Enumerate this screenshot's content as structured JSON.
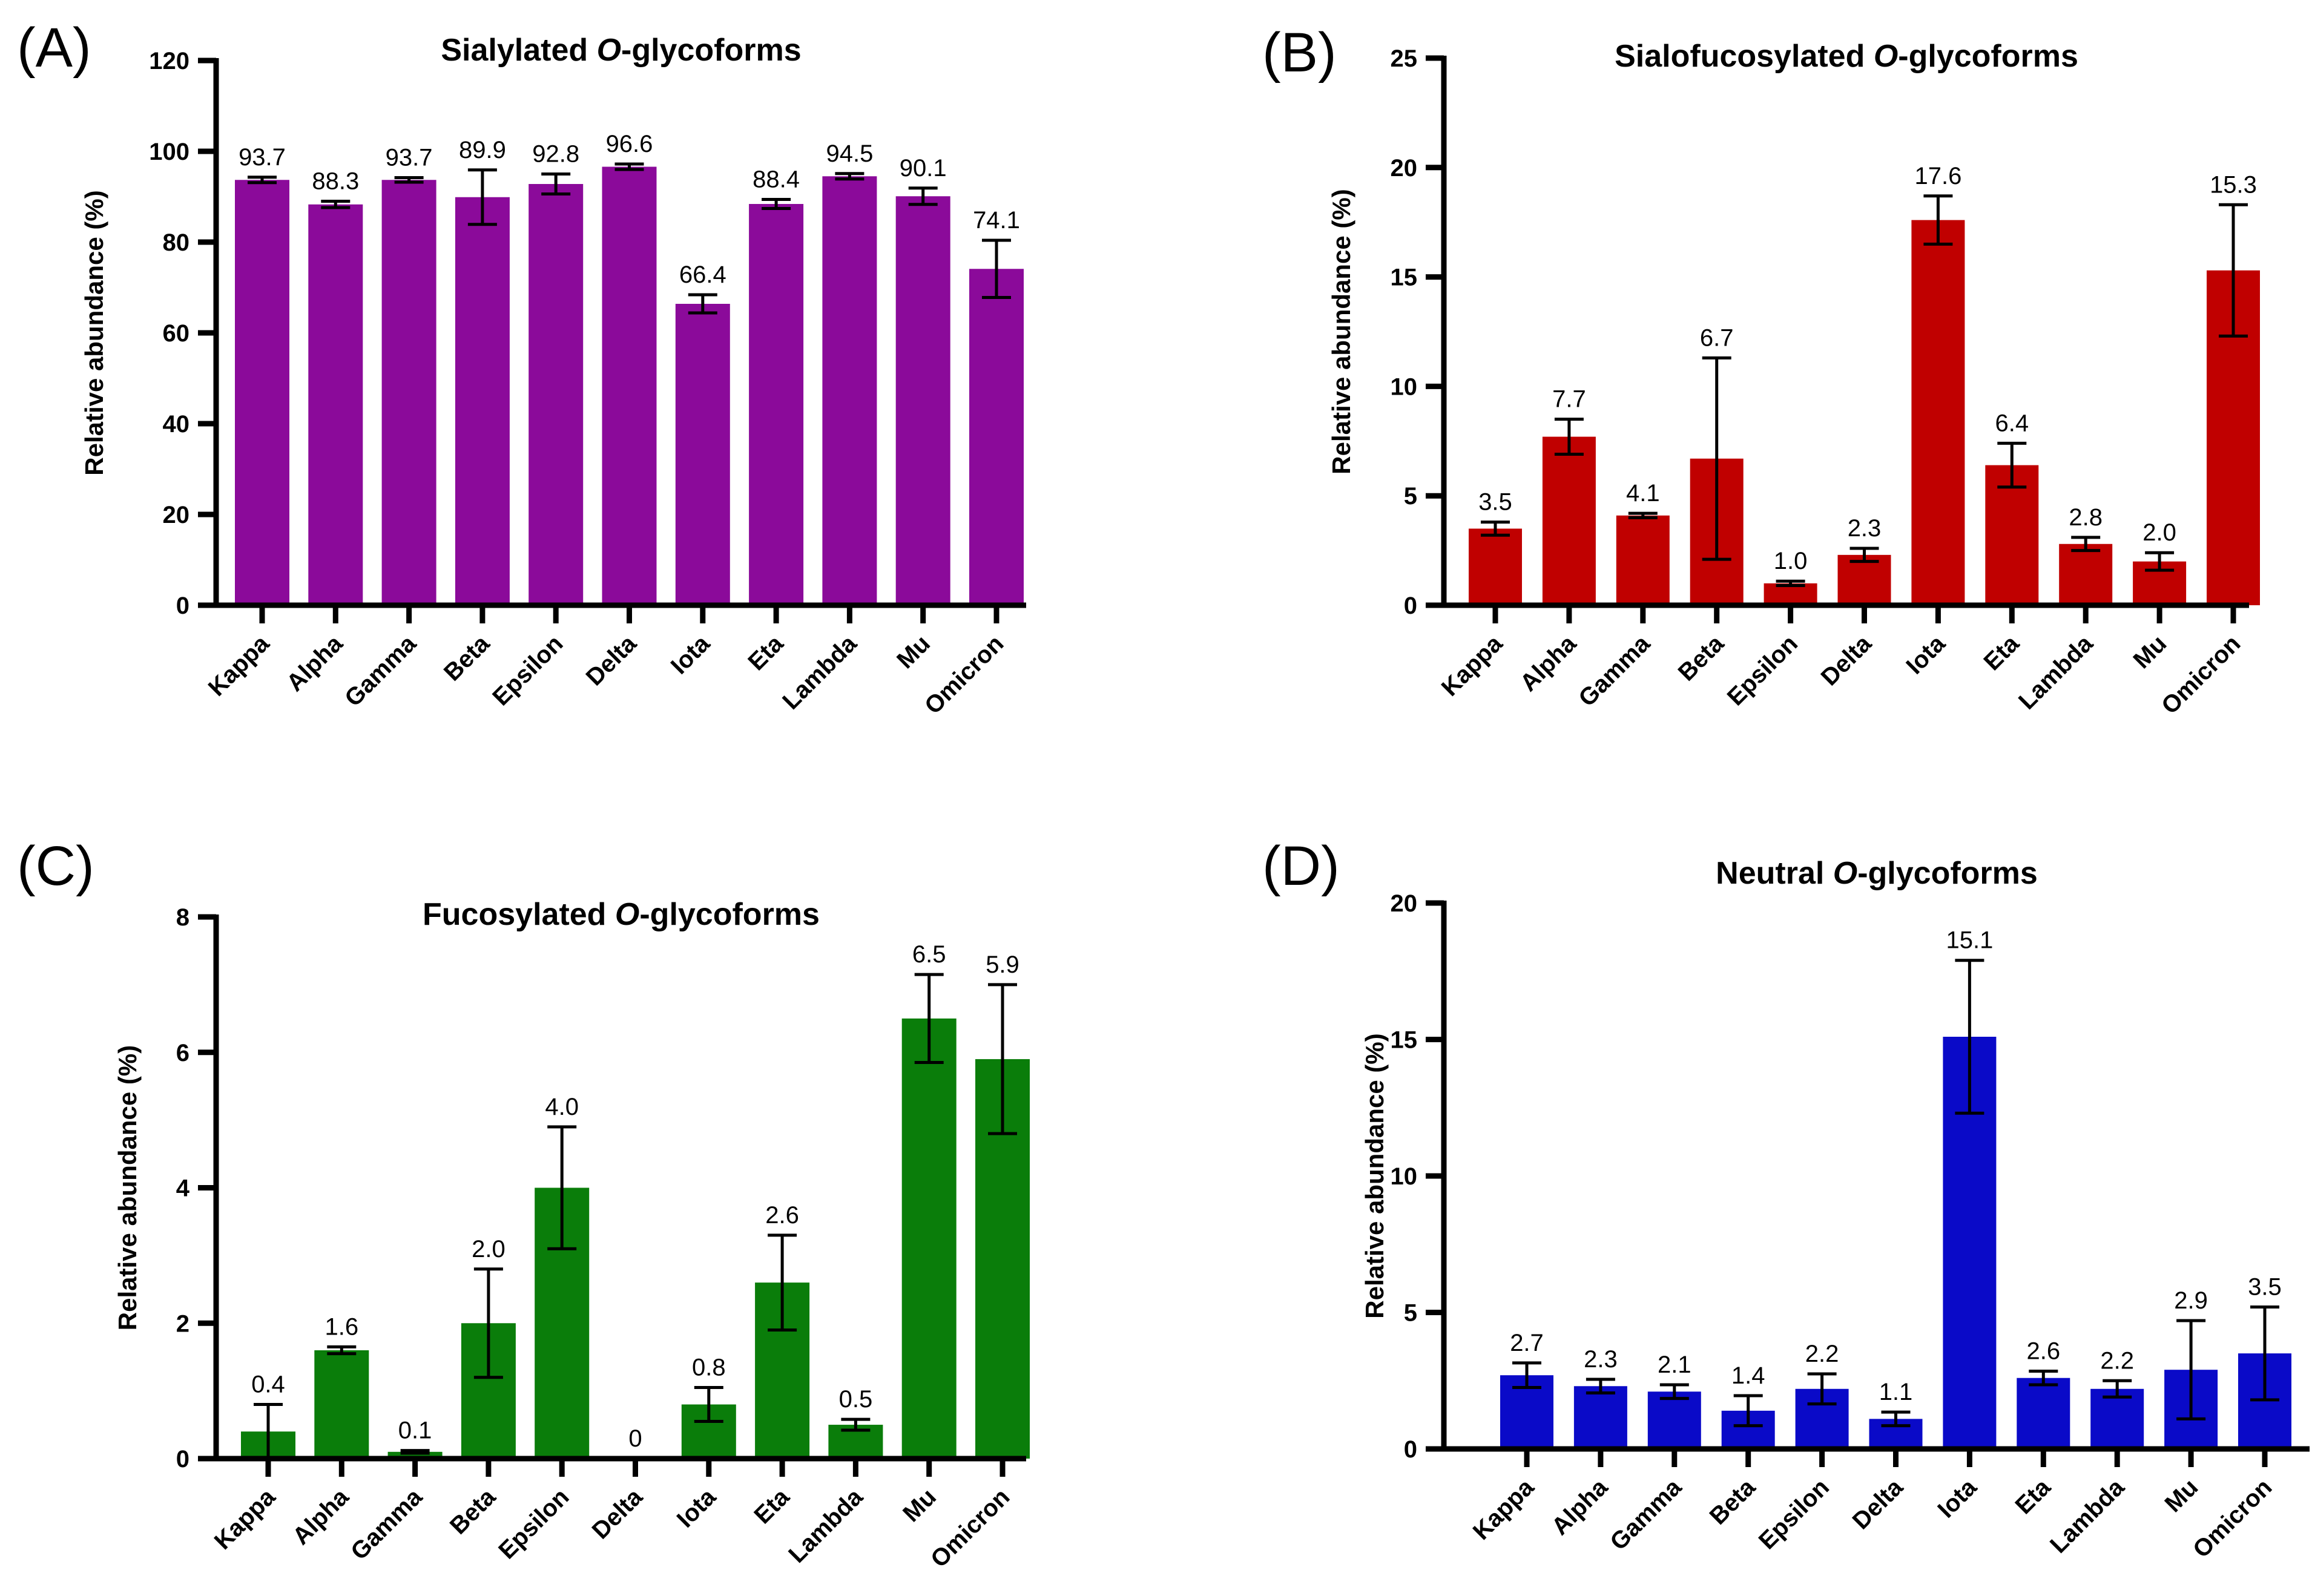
{
  "chart_data": [
    {
      "panel": "(A)",
      "type": "bar",
      "title_pre": "Sialylated ",
      "title_em": "O",
      "title_post": "-glycoforms",
      "ylabel": "Relative abundance  (%)",
      "ylim": [
        0,
        120
      ],
      "yticks": [
        0,
        20,
        40,
        60,
        80,
        100,
        120
      ],
      "color": "#8b0a9a",
      "categories": [
        "Kappa",
        "Alpha",
        "Gamma",
        "Beta",
        "Epsilon",
        "Delta",
        "Iota",
        "Eta",
        "Lambda",
        "Mu",
        "Omicron"
      ],
      "values": [
        93.7,
        88.3,
        93.7,
        89.9,
        92.8,
        96.6,
        66.4,
        88.4,
        94.5,
        90.1,
        74.1
      ],
      "errors": [
        0.6,
        0.7,
        0.5,
        6.0,
        2.2,
        0.6,
        2.0,
        1.0,
        0.6,
        1.8,
        6.3
      ],
      "labels": [
        "93.7",
        "88.3",
        "93.7",
        "89.9",
        "92.8",
        "96.6",
        "66.4",
        "88.4",
        "94.5",
        "90.1",
        "74.1"
      ]
    },
    {
      "panel": "(B)",
      "type": "bar",
      "title_pre": "Sialofucosylated ",
      "title_em": "O",
      "title_post": "-glycoforms",
      "ylabel": "Relative abundance  (%)",
      "ylim": [
        0,
        25
      ],
      "yticks": [
        0,
        5,
        10,
        15,
        20,
        25
      ],
      "color": "#c00000",
      "categories": [
        "Kappa",
        "Alpha",
        "Gamma",
        "Beta",
        "Epsilon",
        "Delta",
        "Iota",
        "Eta",
        "Lambda",
        "Mu",
        "Omicron"
      ],
      "values": [
        3.5,
        7.7,
        4.1,
        6.7,
        1.0,
        2.3,
        17.6,
        6.4,
        2.8,
        2.0,
        15.3
      ],
      "errors": [
        0.3,
        0.8,
        0.1,
        4.6,
        0.1,
        0.3,
        1.1,
        1.0,
        0.3,
        0.4,
        3.0
      ],
      "labels": [
        "3.5",
        "7.7",
        "4.1",
        "6.7",
        "1.0",
        "2.3",
        "17.6",
        "6.4",
        "2.8",
        "2.0",
        "15.3"
      ]
    },
    {
      "panel": "(C)",
      "type": "bar",
      "title_pre": "Fucosylated ",
      "title_em": "O",
      "title_post": "-glycoforms",
      "ylabel": "Relative abundance  (%)",
      "ylim": [
        0,
        8
      ],
      "yticks": [
        0,
        2,
        4,
        6,
        8
      ],
      "color": "#0a7d0a",
      "categories": [
        "Kappa",
        "Alpha",
        "Gamma",
        "Beta",
        "Epsilon",
        "Delta",
        "Iota",
        "Eta",
        "Lambda",
        "Mu",
        "Omicron"
      ],
      "values": [
        0.4,
        1.6,
        0.1,
        2.0,
        4.0,
        0,
        0.8,
        2.6,
        0.5,
        6.5,
        5.9
      ],
      "errors": [
        0.4,
        0.05,
        0.02,
        0.8,
        0.9,
        0,
        0.25,
        0.7,
        0.08,
        0.65,
        1.1
      ],
      "labels": [
        "0.4",
        "1.6",
        "0.1",
        "2.0",
        "4.0",
        "0",
        "0.8",
        "2.6",
        "0.5",
        "6.5",
        "5.9"
      ]
    },
    {
      "panel": "(D)",
      "type": "bar",
      "title_pre": "Neutral ",
      "title_em": "O",
      "title_post": "-glycoforms",
      "ylabel": "Relative abundance  (%)",
      "ylim": [
        0,
        20
      ],
      "yticks": [
        0,
        5,
        10,
        15,
        20
      ],
      "color": "#0a0ac8",
      "categories": [
        "Kappa",
        "Alpha",
        "Gamma",
        "Beta",
        "Epsilon",
        "Delta",
        "Iota",
        "Eta",
        "Lambda",
        "Mu",
        "Omicron"
      ],
      "values": [
        2.7,
        2.3,
        2.1,
        1.4,
        2.2,
        1.1,
        15.1,
        2.6,
        2.2,
        2.9,
        3.5
      ],
      "errors": [
        0.45,
        0.25,
        0.25,
        0.55,
        0.55,
        0.25,
        2.8,
        0.25,
        0.3,
        1.8,
        1.7
      ],
      "labels": [
        "2.7",
        "2.3",
        "2.1",
        "1.4",
        "2.2",
        "1.1",
        "15.1",
        "2.6",
        "2.2",
        "2.9",
        "3.5"
      ]
    }
  ]
}
